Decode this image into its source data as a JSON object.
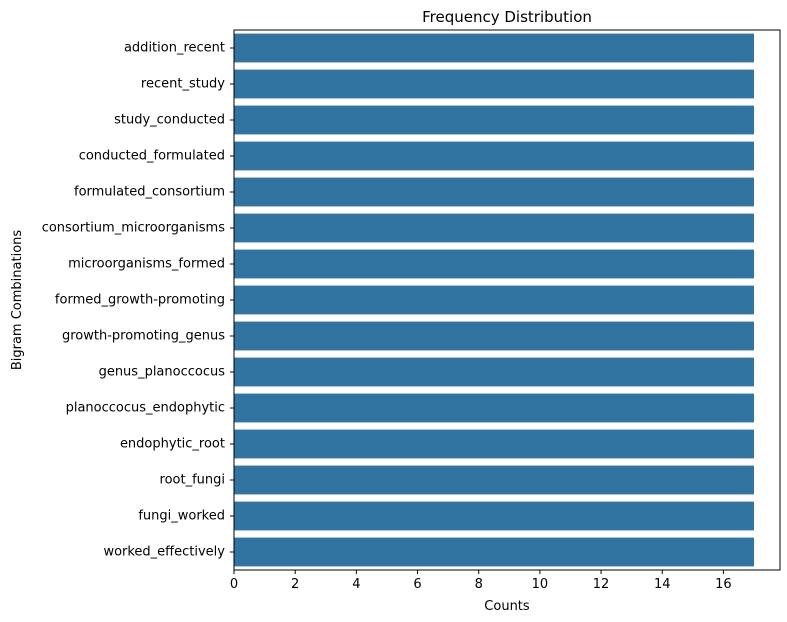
{
  "chart_data": {
    "type": "bar",
    "orientation": "horizontal",
    "title": "Frequency Distribution",
    "xlabel": "Counts",
    "ylabel": "Bigram Combinations",
    "xlim": [
      0,
      17.85
    ],
    "xticks": [
      0,
      2,
      4,
      6,
      8,
      10,
      12,
      14,
      16
    ],
    "grid": false,
    "bar_color": "#3274a1",
    "categories": [
      "addition_recent",
      "recent_study",
      "study_conducted",
      "conducted_formulated",
      "formulated_consortium",
      "consortium_microorganisms",
      "microorganisms_formed",
      "formed_growth-promoting",
      "growth-promoting_genus",
      "genus_planoccocus",
      "planoccocus_endophytic",
      "endophytic_root",
      "root_fungi",
      "fungi_worked",
      "worked_effectively"
    ],
    "values": [
      17,
      17,
      17,
      17,
      17,
      17,
      17,
      17,
      17,
      17,
      17,
      17,
      17,
      17,
      17
    ]
  }
}
